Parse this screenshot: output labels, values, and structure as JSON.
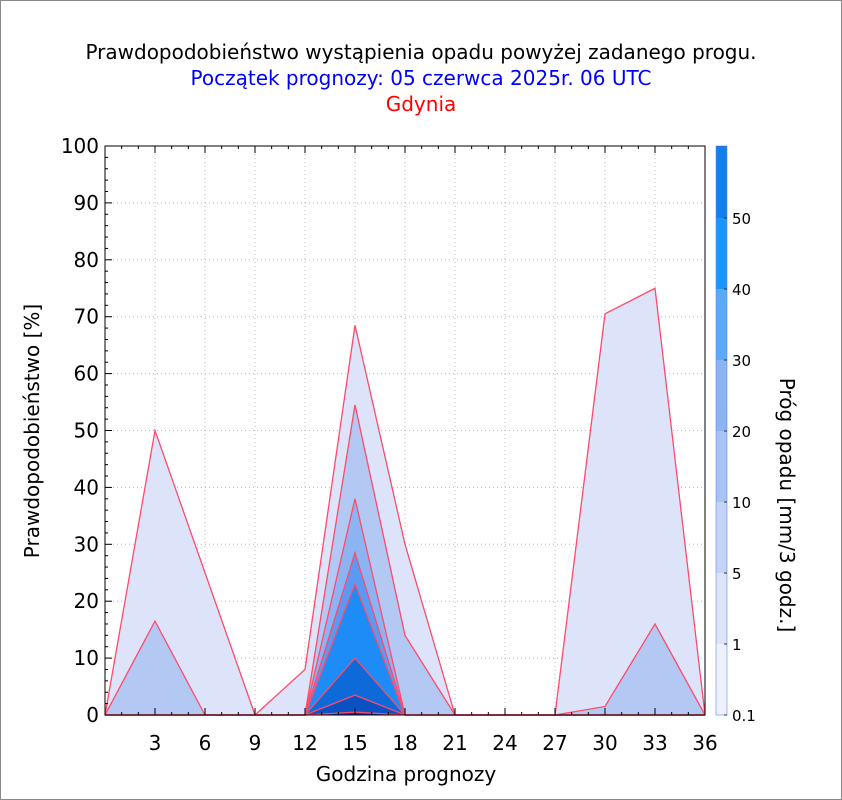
{
  "chart_data": {
    "type": "area",
    "title": "Prawdopodobieństwo wystąpienia opadu powyżej zadanego progu.",
    "subtitle": "Początek prognozy: 05 czerwca 2025r. 06 UTC",
    "location": "Gdynia",
    "xlabel": "Godzina prognozy",
    "ylabel": "Prawdopodobieństwo [%]",
    "colorbar_label": "Próg opadu [mm/3 godz.]",
    "xlim": [
      0,
      36
    ],
    "ylim": [
      0,
      100
    ],
    "x_ticks": [
      3,
      6,
      9,
      12,
      15,
      18,
      21,
      24,
      27,
      30,
      33,
      36
    ],
    "y_ticks": [
      0,
      10,
      20,
      30,
      40,
      50,
      60,
      70,
      80,
      90,
      100
    ],
    "x": [
      0,
      3,
      6,
      9,
      12,
      15,
      18,
      21,
      24,
      27,
      30,
      33,
      36
    ],
    "grid": true,
    "outline_color": "#ff4a6a",
    "series": [
      {
        "name": "0.1",
        "color": "#dde4fa",
        "values": [
          0,
          50,
          25,
          0,
          8,
          68.5,
          30,
          0,
          0,
          0,
          70.5,
          75,
          0
        ]
      },
      {
        "name": "1",
        "color": "#b4c8f4",
        "values": [
          0,
          16.5,
          0,
          0,
          0,
          54.5,
          14,
          0,
          0,
          0,
          1.5,
          16,
          0
        ]
      },
      {
        "name": "5",
        "color": "#8cb4f2",
        "values": [
          0,
          0,
          0,
          0,
          0,
          38,
          0,
          0,
          0,
          0,
          0,
          0,
          0
        ]
      },
      {
        "name": "10",
        "color": "#5a9af4",
        "values": [
          0,
          0,
          0,
          0,
          0,
          28.5,
          0,
          0,
          0,
          0,
          0,
          0,
          0
        ]
      },
      {
        "name": "20",
        "color": "#1e8cf6",
        "values": [
          0,
          0,
          0,
          0,
          0,
          23,
          0,
          0,
          0,
          0,
          0,
          0,
          0
        ]
      },
      {
        "name": "30",
        "color": "#0e6ad8",
        "values": [
          0,
          0,
          0,
          0,
          0,
          10,
          0,
          0,
          0,
          0,
          0,
          0,
          0
        ]
      },
      {
        "name": "40",
        "color": "#0a52c4",
        "values": [
          0,
          0,
          0,
          0,
          0,
          3.5,
          0,
          0,
          0,
          0,
          0,
          0,
          0
        ]
      },
      {
        "name": "50",
        "color": "#0738a6",
        "values": [
          0,
          0,
          0,
          0,
          0,
          0.5,
          0,
          0,
          0,
          0,
          0,
          0,
          0
        ]
      }
    ],
    "colorbar": {
      "labels": [
        "0.1",
        "1",
        "5",
        "10",
        "20",
        "30",
        "40",
        "50"
      ],
      "bands": [
        {
          "from": 0,
          "to": 1,
          "color": "#eef1fc"
        },
        {
          "from": 1,
          "to": 2,
          "color": "#dde4fa"
        },
        {
          "from": 2,
          "to": 3,
          "color": "#c4d4f6"
        },
        {
          "from": 3,
          "to": 4,
          "color": "#a8c2f4"
        },
        {
          "from": 4,
          "to": 5,
          "color": "#8cb4f2"
        },
        {
          "from": 5,
          "to": 6,
          "color": "#5aaaf8"
        },
        {
          "from": 6,
          "to": 7,
          "color": "#1a96fa"
        },
        {
          "from": 7,
          "to": 8,
          "color": "#1280ea"
        },
        {
          "from": 8,
          "to": 9,
          "color": "#0e6ad8"
        },
        {
          "from": 9,
          "to": 10,
          "color": "#0a58c8"
        },
        {
          "from": 10,
          "to": 11,
          "color": "#0848b6"
        },
        {
          "from": 11,
          "to": 12,
          "color": "#0638a4"
        }
      ],
      "label_positions": [
        0,
        1,
        2,
        3,
        4,
        5,
        6,
        7
      ]
    }
  }
}
